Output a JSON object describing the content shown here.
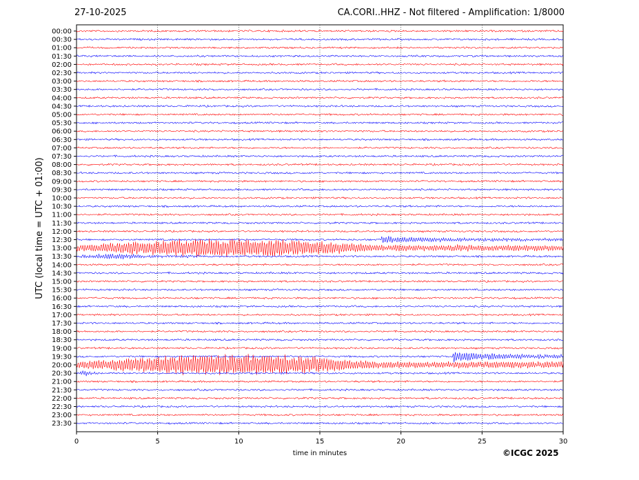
{
  "header": {
    "date": "27-10-2025",
    "title": "CA.CORI..HHZ - Not filtered - Amplification: 1/8000"
  },
  "footer": {
    "copyright": "©ICGC 2025"
  },
  "chart_data": {
    "type": "line",
    "title": "CA.CORI..HHZ - Not filtered - Amplification: 1/8000",
    "xlabel": "time in minutes",
    "ylabel": "UTC (local time = UTC + 01:00)",
    "xlim": [
      0,
      30
    ],
    "x_ticks": [
      0,
      5,
      10,
      15,
      20,
      25,
      30
    ],
    "grid": "vertical dotted at x ticks",
    "series_colors": [
      "#ff0000",
      "#0000ff"
    ],
    "row_labels": [
      "00:00",
      "00:30",
      "01:00",
      "01:30",
      "02:00",
      "02:30",
      "03:00",
      "03:30",
      "04:00",
      "04:30",
      "05:00",
      "05:30",
      "06:00",
      "06:30",
      "07:00",
      "07:30",
      "08:00",
      "08:30",
      "09:00",
      "09:30",
      "10:00",
      "10:30",
      "11:00",
      "11:30",
      "12:00",
      "12:30",
      "13:00",
      "13:30",
      "14:00",
      "14:30",
      "15:00",
      "15:30",
      "16:00",
      "16:30",
      "17:00",
      "17:30",
      "18:00",
      "18:30",
      "19:00",
      "19:30",
      "20:00",
      "20:30",
      "21:00",
      "21:30",
      "22:00",
      "22:30",
      "23:00",
      "23:30"
    ],
    "events": [
      {
        "row": "12:30",
        "start_min": 18.8,
        "end_min": 30,
        "peak_amplitude": 0.45
      },
      {
        "row": "13:00",
        "start_min": 0,
        "end_min": 30,
        "peak_amplitude": 1.2
      },
      {
        "row": "13:30",
        "start_min": 0,
        "end_min": 8,
        "peak_amplitude": 0.3
      },
      {
        "row": "19:30",
        "start_min": 23.2,
        "end_min": 30,
        "peak_amplitude": 0.8
      },
      {
        "row": "20:00",
        "start_min": 0,
        "end_min": 30,
        "peak_amplitude": 1.35
      },
      {
        "row": "20:30",
        "start_min": 0,
        "end_min": 1.5,
        "peak_amplitude": 0.3
      }
    ]
  }
}
